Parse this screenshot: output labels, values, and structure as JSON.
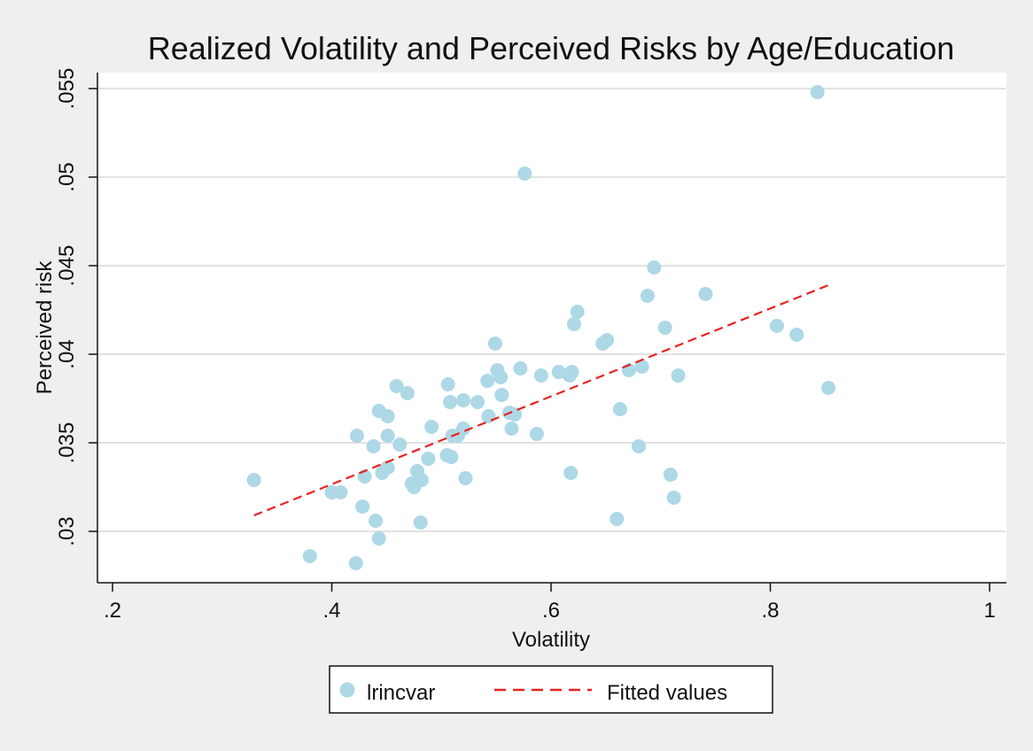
{
  "chart_data": {
    "type": "scatter",
    "title": "Realized Volatility and Perceived Risks by Age/Education",
    "xlabel": "Volatility",
    "ylabel": "Perceived risk",
    "xlim": [
      0.2,
      1.0
    ],
    "ylim": [
      0.03,
      0.055
    ],
    "x_ticks": [
      ".2",
      ".4",
      ".6",
      ".8",
      "1"
    ],
    "y_ticks": [
      ".03",
      ".035",
      ".04",
      ".045",
      ".05",
      ".055"
    ],
    "grid": "horizontal",
    "legend_position": "bottom",
    "colors": {
      "points": "#add8e6",
      "fit": "#e8221f",
      "plot_bg": "#ffffff",
      "outer_bg": "#efefef",
      "grid": "#e2e2e2"
    },
    "series": [
      {
        "name": "lrincvar",
        "type": "scatter",
        "points": [
          [
            0.329,
            0.0329
          ],
          [
            0.38,
            0.0286
          ],
          [
            0.4,
            0.0322
          ],
          [
            0.408,
            0.0322
          ],
          [
            0.422,
            0.0282
          ],
          [
            0.423,
            0.0354
          ],
          [
            0.428,
            0.0314
          ],
          [
            0.43,
            0.0331
          ],
          [
            0.438,
            0.0348
          ],
          [
            0.44,
            0.0306
          ],
          [
            0.443,
            0.0296
          ],
          [
            0.443,
            0.0368
          ],
          [
            0.446,
            0.0333
          ],
          [
            0.451,
            0.0365
          ],
          [
            0.451,
            0.0354
          ],
          [
            0.451,
            0.0336
          ],
          [
            0.459,
            0.0382
          ],
          [
            0.462,
            0.0349
          ],
          [
            0.469,
            0.0378
          ],
          [
            0.473,
            0.0327
          ],
          [
            0.475,
            0.0325
          ],
          [
            0.478,
            0.0334
          ],
          [
            0.481,
            0.0305
          ],
          [
            0.482,
            0.0329
          ],
          [
            0.488,
            0.0341
          ],
          [
            0.491,
            0.0359
          ],
          [
            0.505,
            0.0343
          ],
          [
            0.506,
            0.0383
          ],
          [
            0.508,
            0.0373
          ],
          [
            0.509,
            0.0342
          ],
          [
            0.51,
            0.0354
          ],
          [
            0.515,
            0.0354
          ],
          [
            0.52,
            0.0358
          ],
          [
            0.52,
            0.0374
          ],
          [
            0.522,
            0.033
          ],
          [
            0.533,
            0.0373
          ],
          [
            0.542,
            0.0385
          ],
          [
            0.543,
            0.0365
          ],
          [
            0.549,
            0.0406
          ],
          [
            0.551,
            0.0391
          ],
          [
            0.554,
            0.0387
          ],
          [
            0.555,
            0.0377
          ],
          [
            0.562,
            0.0367
          ],
          [
            0.564,
            0.0358
          ],
          [
            0.567,
            0.0366
          ],
          [
            0.572,
            0.0392
          ],
          [
            0.576,
            0.0502
          ],
          [
            0.587,
            0.0355
          ],
          [
            0.591,
            0.0388
          ],
          [
            0.607,
            0.039
          ],
          [
            0.617,
            0.0388
          ],
          [
            0.618,
            0.0333
          ],
          [
            0.619,
            0.039
          ],
          [
            0.621,
            0.0417
          ],
          [
            0.624,
            0.0424
          ],
          [
            0.647,
            0.0406
          ],
          [
            0.651,
            0.0408
          ],
          [
            0.66,
            0.0307
          ],
          [
            0.663,
            0.0369
          ],
          [
            0.671,
            0.0391
          ],
          [
            0.68,
            0.0348
          ],
          [
            0.683,
            0.0393
          ],
          [
            0.688,
            0.0433
          ],
          [
            0.694,
            0.0449
          ],
          [
            0.704,
            0.0415
          ],
          [
            0.709,
            0.0332
          ],
          [
            0.712,
            0.0319
          ],
          [
            0.716,
            0.0388
          ],
          [
            0.741,
            0.0434
          ],
          [
            0.806,
            0.0416
          ],
          [
            0.824,
            0.0411
          ],
          [
            0.843,
            0.0548
          ],
          [
            0.853,
            0.0381
          ]
        ]
      },
      {
        "name": "Fitted values",
        "type": "line",
        "style": "dashed",
        "x": [
          0.329,
          0.853
        ],
        "y": [
          0.0309,
          0.0439
        ]
      }
    ]
  }
}
